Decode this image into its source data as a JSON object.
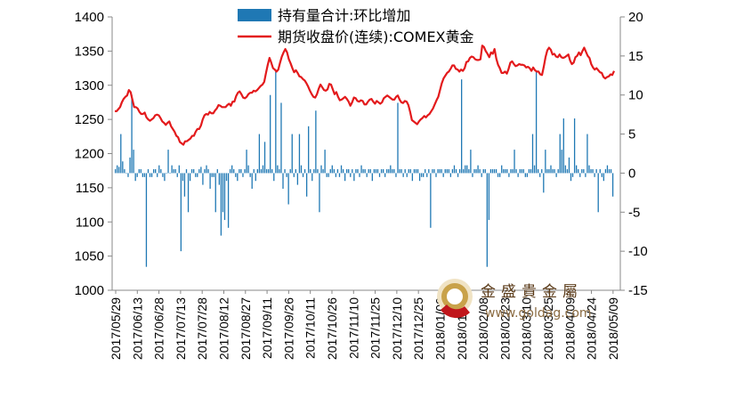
{
  "chart_data": {
    "type": "bar+line",
    "title": "",
    "legend_position": "top-center",
    "grid": false,
    "left_axis": {
      "min": 1000,
      "max": 1400,
      "ticks": [
        1000,
        1050,
        1100,
        1150,
        1200,
        1250,
        1300,
        1350,
        1400
      ]
    },
    "right_axis": {
      "min": -15,
      "max": 20,
      "ticks": [
        -15,
        -10,
        -5,
        0,
        5,
        10,
        15,
        20
      ]
    },
    "x_tick_labels": [
      "2017/05/29",
      "2017/06/13",
      "2017/06/28",
      "2017/07/13",
      "2017/07/28",
      "2017/08/12",
      "2017/08/27",
      "2017/09/11",
      "2017/09/26",
      "2017/10/11",
      "2017/10/26",
      "2017/11/10",
      "2017/11/25",
      "2017/12/10",
      "2017/12/25",
      "2018/01/09",
      "2018/01/24",
      "2018/02/08",
      "2018/02/23",
      "2018/03/10",
      "2018/03/25",
      "2018/04/09",
      "2018/04/24",
      "2018/05/09"
    ],
    "series": [
      {
        "name": "持有量合计:环比增加",
        "type": "bar",
        "axis": "right",
        "color": "#1f78b4",
        "values": [
          0.5,
          1,
          0.8,
          5,
          1.5,
          0.5,
          0,
          -0.5,
          2,
          10,
          3,
          -1,
          -0.5,
          0.5,
          0.5,
          -0.5,
          -0.5,
          -12,
          0.5,
          -0.5,
          -0.5,
          0.5,
          0.5,
          -0.5,
          1,
          0.5,
          -0.5,
          -1,
          0,
          3,
          0,
          1,
          0.5,
          0.5,
          -0.5,
          1,
          -10,
          -1,
          -3,
          0.5,
          -5,
          -1,
          0.5,
          0.5,
          -0.5,
          -0.5,
          0.5,
          0.8,
          -1.5,
          0.5,
          1,
          0.5,
          -2,
          -0.5,
          -0.5,
          -5,
          0.5,
          -1.5,
          -8,
          -5,
          -6,
          -1,
          -7,
          0.5,
          1,
          0.5,
          -0.5,
          -1,
          0.5,
          0.5,
          -0.5,
          0.5,
          3,
          1,
          -0.5,
          -2,
          0.5,
          -1,
          0.5,
          5,
          0.5,
          1,
          4,
          0.5,
          0.5,
          10,
          0.5,
          -1,
          13,
          1,
          0.5,
          9,
          -2,
          0.5,
          -0.5,
          -4,
          0.5,
          5,
          -0.5,
          0.5,
          -1.5,
          5,
          1,
          -0.5,
          0.5,
          -3,
          6,
          0.5,
          -1,
          0.5,
          8,
          0.5,
          -5,
          1,
          0.5,
          3,
          -0.5,
          -0.5,
          0.5,
          1,
          0.5,
          -0.5,
          0.5,
          -0.5,
          1,
          0.5,
          -1,
          0.5,
          0.5,
          -0.5,
          0.5,
          -1,
          0.5,
          0.5,
          -0.5,
          1,
          0.5,
          0.5,
          -0.5,
          0.5,
          0.5,
          -1,
          0.5,
          0.5,
          0.5,
          -0.5,
          0.5,
          0.5,
          -0.5,
          0.5,
          0.5,
          1,
          0.5,
          0.5,
          -0.5,
          9,
          0.5,
          0.5,
          -0.5,
          0.5,
          -0.5,
          0.5,
          0.5,
          -1,
          0.5,
          0.5,
          0.5,
          -1,
          -0.5,
          -0.5,
          0.5,
          -0.5,
          0.5,
          -7,
          0.5,
          0.5,
          -0.5,
          0.5,
          0.5,
          0.5,
          -0.5,
          0.5,
          0.5,
          0.5,
          -0.5,
          0.5,
          1,
          0.5,
          -0.5,
          0.5,
          12,
          0.5,
          1,
          1,
          0.5,
          3,
          -0.5,
          0.5,
          0.5,
          1,
          0.5,
          -0.5,
          0.5,
          0.5,
          -12,
          -6,
          0.5,
          0.5,
          0.5,
          0.5,
          -0.5,
          -0.5,
          1,
          0.5,
          0.5,
          0.5,
          -0.5,
          0.5,
          0.5,
          3,
          0.5,
          -0.5,
          0.5,
          0.5,
          0.5,
          -0.5,
          -0.5,
          0.5,
          0.5,
          5,
          1,
          13,
          0.5,
          -0.5,
          0.5,
          -2.5,
          3,
          0.5,
          0.5,
          1,
          0.5,
          0.5,
          -0.5,
          0.5,
          5,
          3,
          7,
          1,
          0.5,
          2,
          -1,
          -0.5,
          7,
          1,
          0.5,
          -0.5,
          0.5,
          0.5,
          -0.5,
          5,
          1,
          0.5,
          0.5,
          -0.5,
          0.5,
          -5,
          0.5,
          -0.5,
          -1,
          0.5,
          1,
          0.5,
          0.5,
          -3
        ]
      },
      {
        "name": "期货收盘价(连续):COMEX黄金",
        "type": "line",
        "axis": "left",
        "color": "#e31a1c",
        "values": [
          1262,
          1262,
          1265,
          1268,
          1275,
          1280,
          1283,
          1285,
          1293,
          1290,
          1279,
          1268,
          1268,
          1266,
          1261,
          1258,
          1258,
          1260,
          1253,
          1250,
          1248,
          1250,
          1252,
          1256,
          1257,
          1256,
          1252,
          1247,
          1245,
          1242,
          1245,
          1247,
          1240,
          1236,
          1232,
          1226,
          1224,
          1217,
          1215,
          1213,
          1218,
          1218,
          1220,
          1222,
          1226,
          1226,
          1232,
          1236,
          1236,
          1241,
          1250,
          1256,
          1258,
          1257,
          1261,
          1259,
          1259,
          1263,
          1266,
          1271,
          1270,
          1268,
          1268,
          1268,
          1271,
          1273,
          1270,
          1276,
          1276,
          1284,
          1289,
          1291,
          1287,
          1282,
          1281,
          1283,
          1287,
          1289,
          1289,
          1292,
          1291,
          1293,
          1296,
          1299,
          1301,
          1305,
          1318,
          1330,
          1340,
          1333,
          1325,
          1323,
          1320,
          1323,
          1333,
          1342,
          1348,
          1353,
          1348,
          1338,
          1332,
          1325,
          1319,
          1322,
          1318,
          1313,
          1312,
          1309,
          1307,
          1303,
          1298,
          1292,
          1287,
          1283,
          1282,
          1287,
          1295,
          1301,
          1297,
          1293,
          1292,
          1294,
          1302,
          1301,
          1294,
          1287,
          1290,
          1283,
          1278,
          1279,
          1281,
          1283,
          1280,
          1276,
          1270,
          1275,
          1282,
          1281,
          1277,
          1276,
          1278,
          1277,
          1272,
          1272,
          1276,
          1279,
          1280,
          1276,
          1273,
          1277,
          1275,
          1273,
          1275,
          1281,
          1283,
          1285,
          1283,
          1281,
          1279,
          1279,
          1283,
          1285,
          1279,
          1275,
          1274,
          1277,
          1276,
          1271,
          1261,
          1249,
          1247,
          1245,
          1243,
          1247,
          1250,
          1252,
          1255,
          1253,
          1256,
          1258,
          1262,
          1266,
          1272,
          1278,
          1283,
          1293,
          1303,
          1310,
          1314,
          1318,
          1320,
          1324,
          1329,
          1329,
          1324,
          1323,
          1320,
          1323,
          1321,
          1325,
          1334,
          1335,
          1340,
          1342,
          1341,
          1338,
          1337,
          1337,
          1338,
          1358,
          1356,
          1350,
          1346,
          1341,
          1348,
          1346,
          1353,
          1339,
          1330,
          1325,
          1318,
          1318,
          1320,
          1317,
          1324,
          1333,
          1335,
          1331,
          1328,
          1329,
          1331,
          1330,
          1330,
          1329,
          1326,
          1327,
          1325,
          1321,
          1326,
          1322,
          1320,
          1320,
          1316,
          1315,
          1327,
          1341,
          1351,
          1355,
          1352,
          1345,
          1346,
          1342,
          1341,
          1345,
          1341,
          1340,
          1341,
          1343,
          1345,
          1336,
          1331,
          1333,
          1341,
          1343,
          1348,
          1344,
          1350,
          1355,
          1349,
          1343,
          1340,
          1331,
          1326,
          1323,
          1325,
          1322,
          1319,
          1318,
          1312,
          1310,
          1312,
          1313,
          1316,
          1315,
          1321
        ]
      }
    ],
    "watermark": {
      "text": "金盛貴金屬",
      "url": "www.goldag.com"
    }
  }
}
